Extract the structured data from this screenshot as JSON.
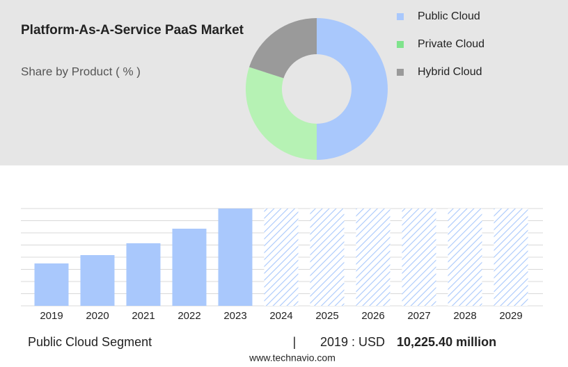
{
  "chart_data": [
    {
      "type": "pie",
      "title": "Platform-As-A-Service PaaS Market",
      "subtitle": "Share by Product ( % )",
      "categories": [
        "Public Cloud",
        "Private Cloud",
        "Hybrid Cloud"
      ],
      "values": [
        50,
        30,
        20
      ],
      "colors": [
        "#a9c8fc",
        "#b6f2b4",
        "#9a9a9a"
      ],
      "legend_colors": [
        "#a9c8fc",
        "#7fe38c",
        "#9a9a9a"
      ],
      "donut": true
    },
    {
      "type": "bar",
      "categories": [
        "2019",
        "2020",
        "2021",
        "2022",
        "2023",
        "2024",
        "2025",
        "2026",
        "2027",
        "2028",
        "2029"
      ],
      "values": [
        10225.4,
        12236,
        15087,
        18607,
        23468,
        null,
        null,
        null,
        null,
        null,
        null
      ],
      "color": "#a9c8fc",
      "ylim": [
        0,
        23468
      ],
      "grid": true
    }
  ],
  "footer": {
    "segment": "Public Cloud Segment",
    "separator": "|",
    "year_label": "2019 : USD",
    "value_label": "10,225.40 million",
    "source": "www.technavio.com"
  }
}
